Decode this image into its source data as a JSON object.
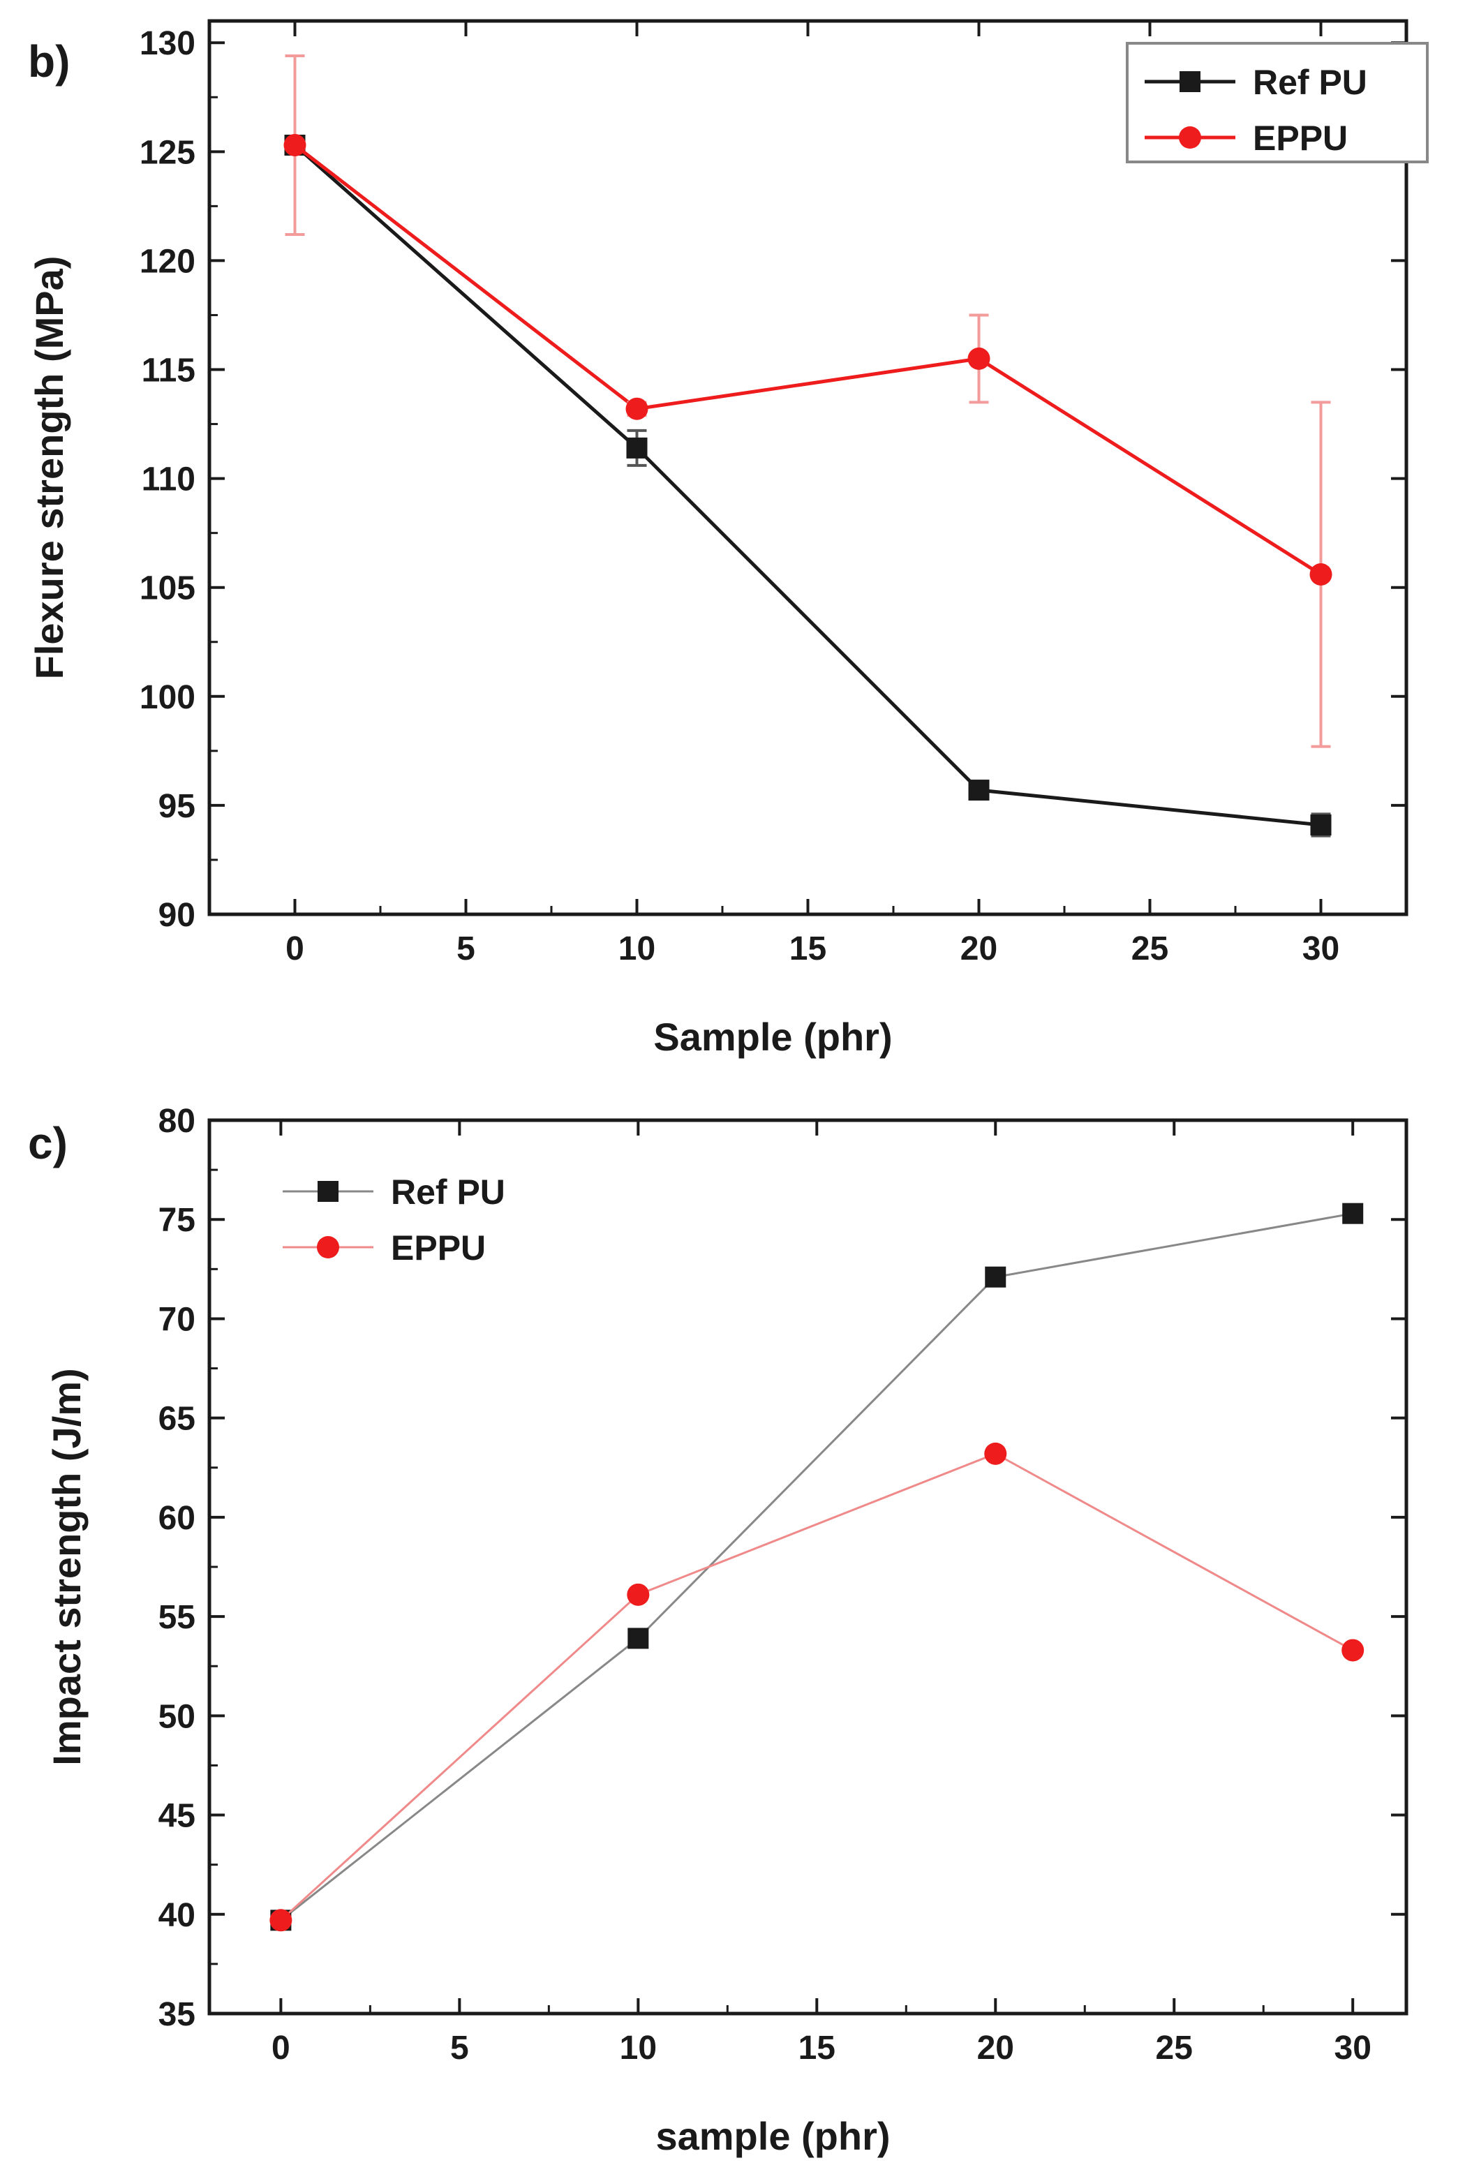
{
  "chart_data": [
    {
      "type": "line",
      "panel_label": "b)",
      "xlabel": "Sample (phr)",
      "ylabel": "Flexure strength (MPa)",
      "xlim": [
        -2.5,
        32.5
      ],
      "ylim": [
        90,
        131
      ],
      "xticks": [
        0,
        5,
        10,
        15,
        20,
        25,
        30
      ],
      "yticks": [
        90,
        95,
        100,
        105,
        110,
        115,
        120,
        125,
        130
      ],
      "legend_position": "top-right",
      "legend_boxed": true,
      "x": [
        0,
        10,
        20,
        30
      ],
      "series": [
        {
          "name": "Ref PU",
          "color": "#1a1a1a",
          "marker": "square",
          "values": [
            125.3,
            111.4,
            95.7,
            94.1
          ],
          "errors": [
            0.3,
            0.8,
            0.4,
            0.5
          ]
        },
        {
          "name": "EPPU",
          "color": "#ee1c1c",
          "marker": "circle",
          "values": [
            125.3,
            113.2,
            115.5,
            105.6
          ],
          "errors": [
            4.1,
            0.3,
            2.0,
            7.9
          ]
        }
      ]
    },
    {
      "type": "line",
      "panel_label": "c)",
      "xlabel": "sample (phr)",
      "ylabel": "Impact strength (J/m)",
      "xlim": [
        -2,
        31.5
      ],
      "ylim": [
        35,
        80
      ],
      "xticks": [
        0,
        5,
        10,
        15,
        20,
        25,
        30
      ],
      "yticks": [
        35,
        40,
        45,
        50,
        55,
        60,
        65,
        70,
        75,
        80
      ],
      "legend_position": "top-left",
      "legend_boxed": false,
      "x": [
        0,
        10,
        20,
        30
      ],
      "series": [
        {
          "name": "Ref PU",
          "color": "#1a1a1a",
          "line_color": "#888888",
          "marker": "square",
          "values": [
            39.7,
            53.9,
            72.1,
            75.3
          ]
        },
        {
          "name": "EPPU",
          "color": "#ee1c1c",
          "line_color": "#f08a8a",
          "marker": "circle",
          "values": [
            39.7,
            56.1,
            63.2,
            53.3
          ]
        }
      ]
    }
  ]
}
